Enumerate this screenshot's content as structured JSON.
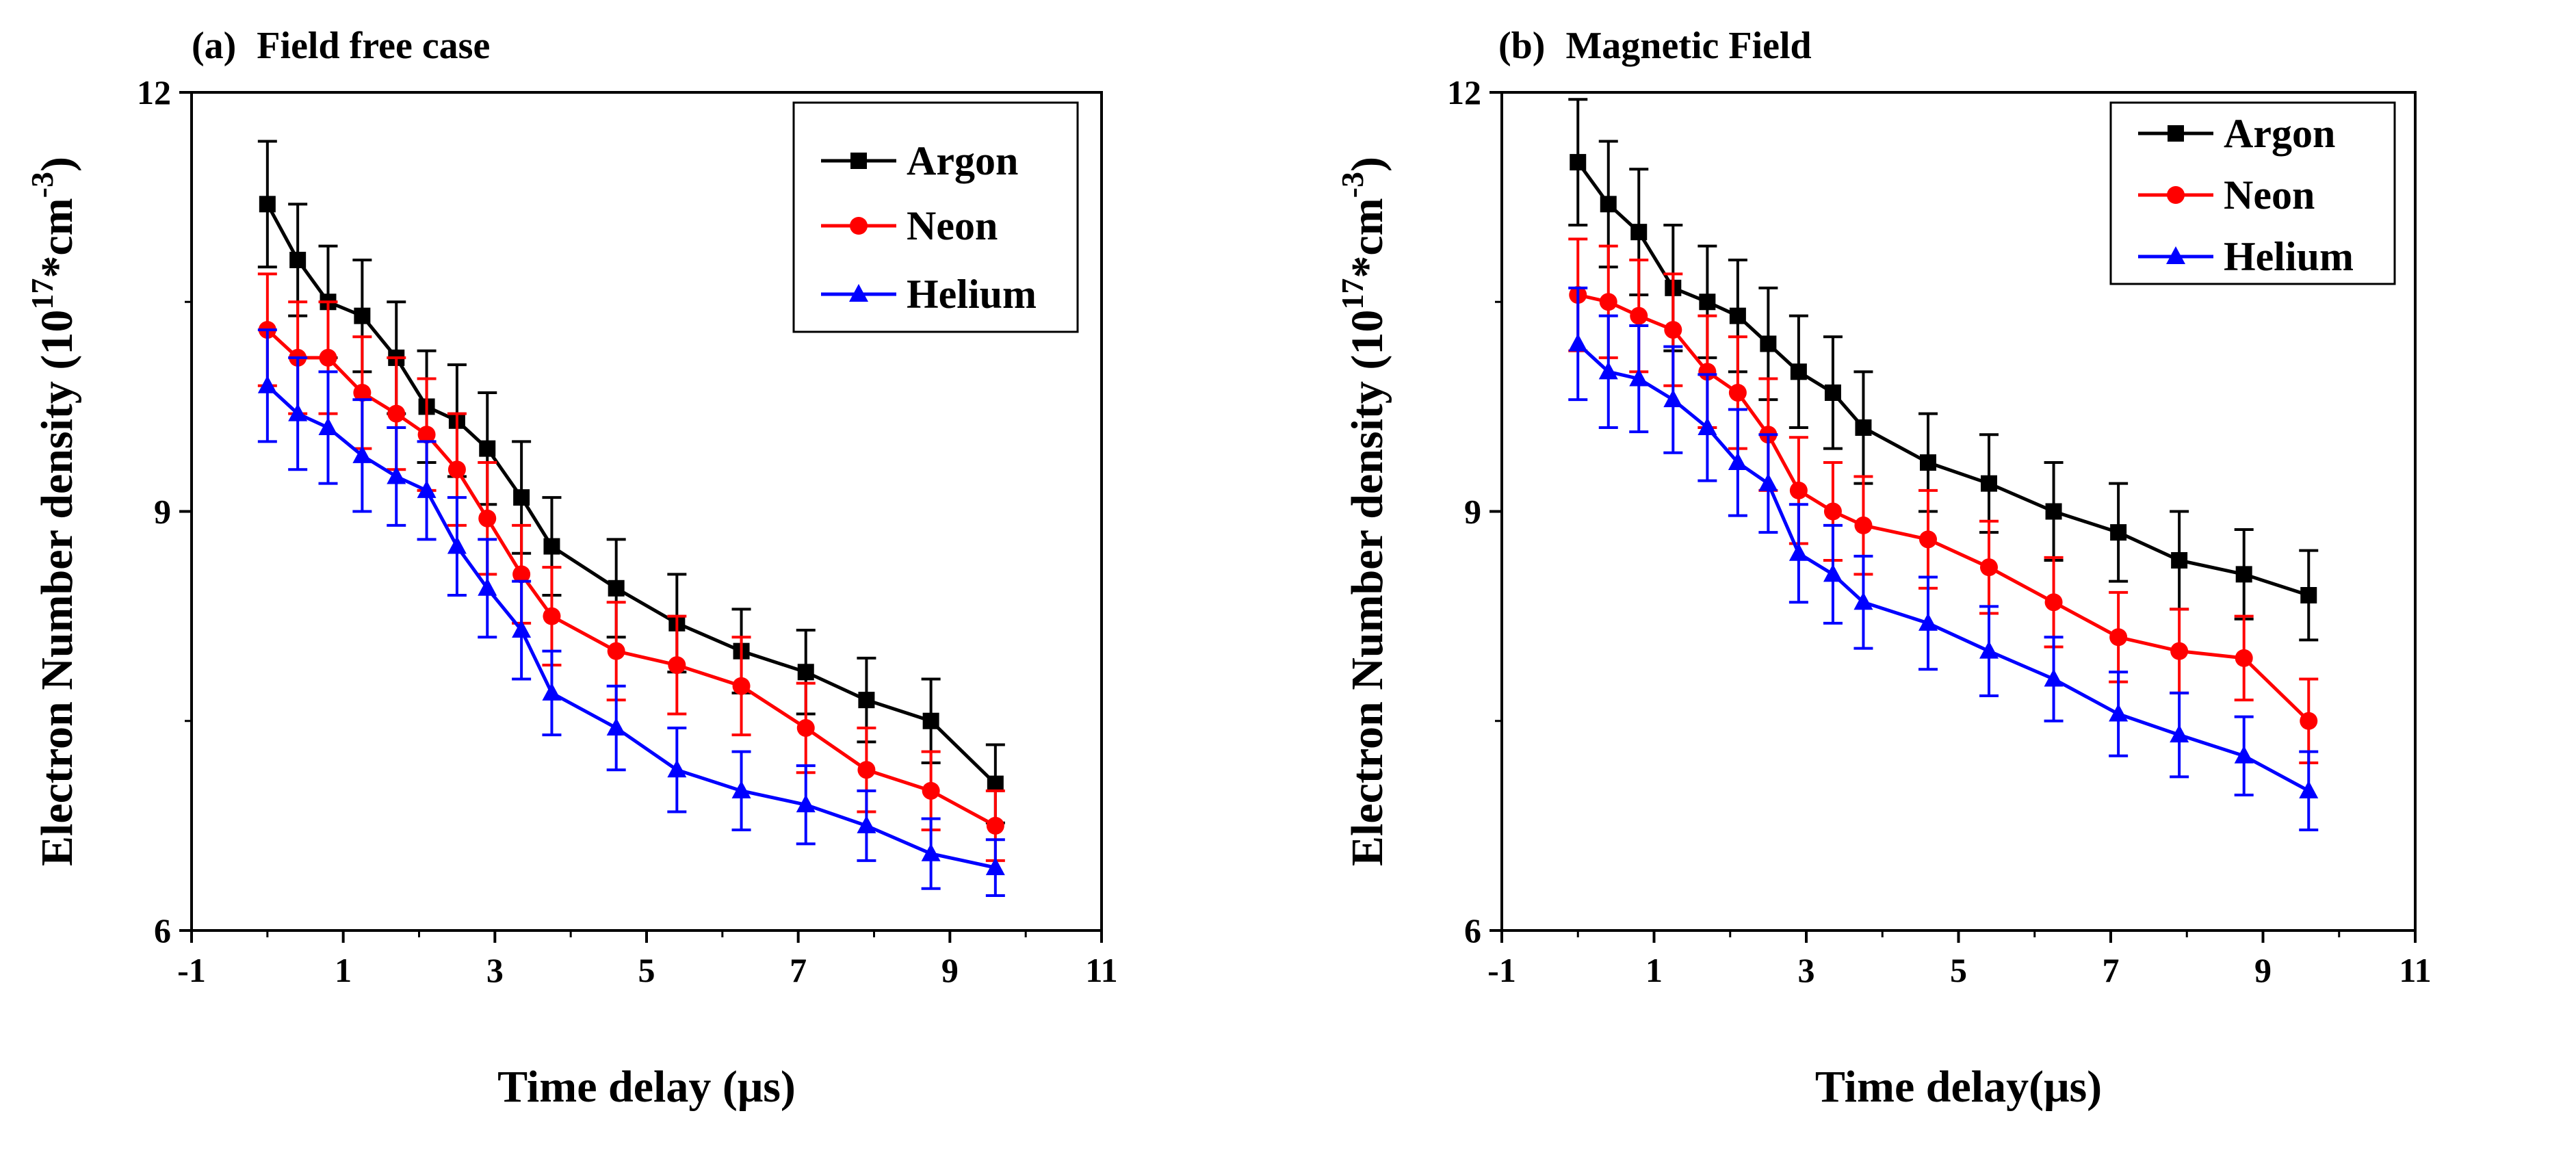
{
  "chart_data": [
    {
      "type": "line",
      "panel_label": "(a)",
      "title": "Field free case",
      "xlabel": "Time delay (μs)",
      "ylabel": "Electron Number density (10",
      "ylabel_exp": "17",
      "ylabel_mid": "*cm",
      "ylabel_exp2": "-3",
      "ylabel_end": ")",
      "xlim": [
        -1,
        11
      ],
      "ylim": [
        6,
        12
      ],
      "xticks": [
        -1,
        1,
        3,
        5,
        7,
        9,
        11
      ],
      "yticks": [
        6,
        9,
        12
      ],
      "x": [
        0,
        0.4,
        0.8,
        1.25,
        1.7,
        2.1,
        2.5,
        2.9,
        3.35,
        3.75,
        4.6,
        5.4,
        6.25,
        7.1,
        7.9,
        8.75,
        9.6
      ],
      "series": [
        {
          "name": "Argon",
          "color": "#000000",
          "marker": "square",
          "values": [
            11.2,
            10.8,
            10.5,
            10.4,
            10.1,
            9.75,
            9.65,
            9.45,
            9.1,
            8.75,
            8.45,
            8.2,
            8.0,
            7.85,
            7.65,
            7.5,
            7.05
          ],
          "errors": [
            0.45,
            0.4,
            0.4,
            0.4,
            0.4,
            0.4,
            0.4,
            0.4,
            0.4,
            0.35,
            0.35,
            0.35,
            0.3,
            0.3,
            0.3,
            0.3,
            0.28
          ]
        },
        {
          "name": "Neon",
          "color": "#ff0000",
          "marker": "circle",
          "values": [
            10.3,
            10.1,
            10.1,
            9.85,
            9.7,
            9.55,
            9.3,
            8.95,
            8.55,
            8.25,
            8.0,
            7.9,
            7.75,
            7.45,
            7.15,
            7.0,
            6.75
          ],
          "errors": [
            0.4,
            0.4,
            0.4,
            0.4,
            0.4,
            0.4,
            0.4,
            0.4,
            0.35,
            0.35,
            0.35,
            0.35,
            0.35,
            0.32,
            0.3,
            0.28,
            0.25
          ]
        },
        {
          "name": "Helium",
          "color": "#0000ff",
          "marker": "triangle",
          "values": [
            9.9,
            9.7,
            9.6,
            9.4,
            9.25,
            9.15,
            8.75,
            8.45,
            8.15,
            7.7,
            7.45,
            7.15,
            7.0,
            6.9,
            6.75,
            6.55,
            6.45
          ],
          "errors": [
            0.4,
            0.4,
            0.4,
            0.4,
            0.35,
            0.35,
            0.35,
            0.35,
            0.35,
            0.3,
            0.3,
            0.3,
            0.28,
            0.28,
            0.25,
            0.25,
            0.2
          ]
        }
      ]
    },
    {
      "type": "line",
      "panel_label": "(b)",
      "title": "Magnetic Field",
      "xlabel": "Time delay(μs)",
      "ylabel": "Electron Number density (10",
      "ylabel_exp": "17",
      "ylabel_mid": "*cm",
      "ylabel_exp2": "-3",
      "ylabel_end": ")",
      "xlim": [
        -1,
        11
      ],
      "ylim": [
        6,
        12
      ],
      "xticks": [
        -1,
        1,
        3,
        5,
        7,
        9,
        11
      ],
      "yticks": [
        6,
        9,
        12
      ],
      "x": [
        0,
        0.4,
        0.8,
        1.25,
        1.7,
        2.1,
        2.5,
        2.9,
        3.35,
        3.75,
        4.6,
        5.4,
        6.25,
        7.1,
        7.9,
        8.75,
        9.6
      ],
      "series": [
        {
          "name": "Argon",
          "color": "#000000",
          "marker": "square",
          "values": [
            11.5,
            11.2,
            11.0,
            10.6,
            10.5,
            10.4,
            10.2,
            10.0,
            9.85,
            9.6,
            9.35,
            9.2,
            9.0,
            8.85,
            8.65,
            8.55,
            8.4
          ],
          "errors": [
            0.45,
            0.45,
            0.45,
            0.45,
            0.4,
            0.4,
            0.4,
            0.4,
            0.4,
            0.4,
            0.35,
            0.35,
            0.35,
            0.35,
            0.35,
            0.32,
            0.32
          ]
        },
        {
          "name": "Neon",
          "color": "#ff0000",
          "marker": "circle",
          "values": [
            10.55,
            10.5,
            10.4,
            10.3,
            10.0,
            9.85,
            9.55,
            9.15,
            9.0,
            8.9,
            8.8,
            8.6,
            8.35,
            8.1,
            8.0,
            7.95,
            7.5
          ],
          "errors": [
            0.4,
            0.4,
            0.4,
            0.4,
            0.4,
            0.4,
            0.4,
            0.38,
            0.35,
            0.35,
            0.35,
            0.33,
            0.32,
            0.32,
            0.3,
            0.3,
            0.3
          ]
        },
        {
          "name": "Helium",
          "color": "#0000ff",
          "marker": "triangle",
          "values": [
            10.2,
            10.0,
            9.95,
            9.8,
            9.6,
            9.35,
            9.2,
            8.7,
            8.55,
            8.35,
            8.2,
            8.0,
            7.8,
            7.55,
            7.4,
            7.25,
            7.0
          ],
          "errors": [
            0.4,
            0.4,
            0.38,
            0.38,
            0.38,
            0.38,
            0.35,
            0.35,
            0.35,
            0.33,
            0.33,
            0.32,
            0.3,
            0.3,
            0.3,
            0.28,
            0.28
          ]
        }
      ]
    }
  ]
}
